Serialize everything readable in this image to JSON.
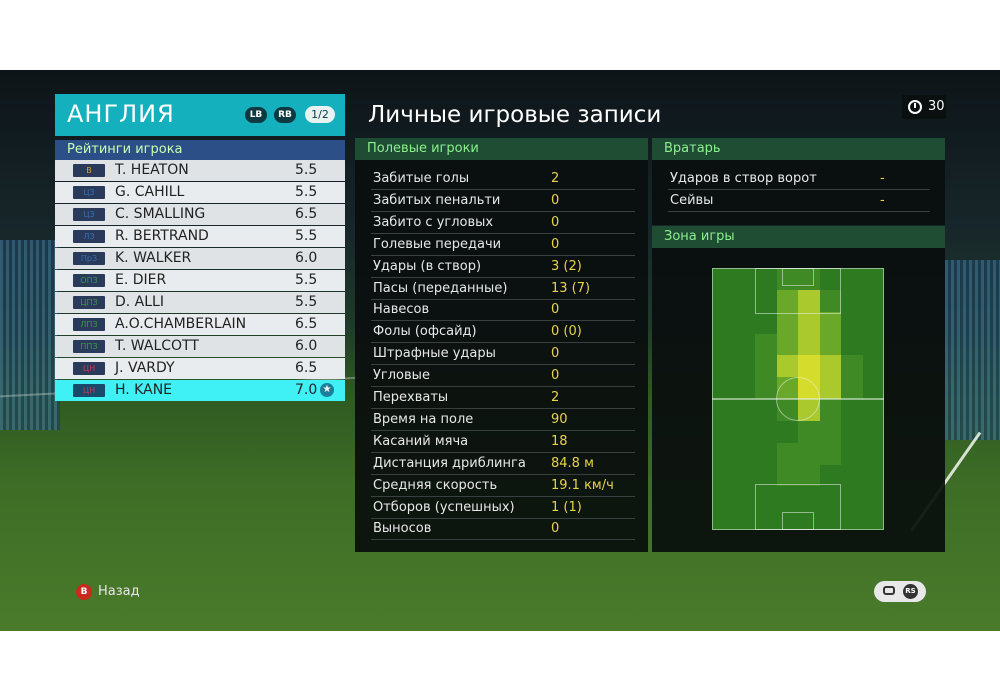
{
  "team": {
    "name": "АНГЛИЯ",
    "lb": "LB",
    "rb": "RB",
    "page": "1/2"
  },
  "ratings_title": "Рейтинги игрока",
  "players": [
    {
      "pos": "В",
      "pos_color": "#d8a81e",
      "name": "T. HEATON",
      "rating": "5.5"
    },
    {
      "pos": "ЦЗ",
      "pos_color": "#3a6fb0",
      "name": "G. CAHILL",
      "rating": "5.5"
    },
    {
      "pos": "ЦЗ",
      "pos_color": "#3a6fb0",
      "name": "C. SMALLING",
      "rating": "6.5"
    },
    {
      "pos": "ЛЗ",
      "pos_color": "#3a6fb0",
      "name": "R. BERTRAND",
      "rating": "5.5"
    },
    {
      "pos": "ПрЗ",
      "pos_color": "#3a6fb0",
      "name": "K. WALKER",
      "rating": "6.0"
    },
    {
      "pos": "ОПЗ",
      "pos_color": "#3a9a44",
      "name": "E. DIER",
      "rating": "5.5"
    },
    {
      "pos": "ЦПЗ",
      "pos_color": "#3a9a44",
      "name": "D. ALLI",
      "rating": "5.5"
    },
    {
      "pos": "ЛПЗ",
      "pos_color": "#3a9a44",
      "name": "A.O.CHAMBERLAIN",
      "rating": "6.5"
    },
    {
      "pos": "ППЗ",
      "pos_color": "#3a9a44",
      "name": "T. WALCOTT",
      "rating": "6.0"
    },
    {
      "pos": "ЦН",
      "pos_color": "#c83a4a",
      "name": "J. VARDY",
      "rating": "6.5"
    },
    {
      "pos": "ЦН",
      "pos_color": "#c83a4a",
      "name": "H. KANE",
      "rating": "7.0",
      "selected": true
    }
  ],
  "stats_title": "Личные игровые записи",
  "timer": "30",
  "field_players": {
    "header": "Полевые игроки",
    "rows": [
      {
        "label": "Забитые голы",
        "value": "2"
      },
      {
        "label": "Забитых пенальти",
        "value": "0"
      },
      {
        "label": "Забито с угловых",
        "value": "0"
      },
      {
        "label": "Голевые передачи",
        "value": "0"
      },
      {
        "label": "Удары (в створ)",
        "value": "3 (2)"
      },
      {
        "label": "Пасы (переданные)",
        "value": "13 (7)"
      },
      {
        "label": "Навесов",
        "value": "0"
      },
      {
        "label": "Фолы (офсайд)",
        "value": "0 (0)"
      },
      {
        "label": "Штрафные удары",
        "value": "0"
      },
      {
        "label": "Угловые",
        "value": "0"
      },
      {
        "label": "Перехваты",
        "value": "2"
      },
      {
        "label": "Время на поле",
        "value": "90"
      },
      {
        "label": "Касаний мяча",
        "value": "18"
      },
      {
        "label": "Дистанция дриблинга",
        "value": "84.8 м"
      },
      {
        "label": "Средняя скорость",
        "value": "19.1 км/ч"
      },
      {
        "label": "Отборов (успешных)",
        "value": "1 (1)"
      },
      {
        "label": "Выносов",
        "value": "0"
      }
    ]
  },
  "goalkeeper": {
    "header": "Вратарь",
    "rows": [
      {
        "label": "Ударов в створ ворот",
        "value": "-"
      },
      {
        "label": "Сейвы",
        "value": "-"
      }
    ]
  },
  "zone": {
    "header": "Зона игры"
  },
  "footer": {
    "back_icon": "B",
    "back_label": "Назад",
    "rs_label": "RS"
  }
}
